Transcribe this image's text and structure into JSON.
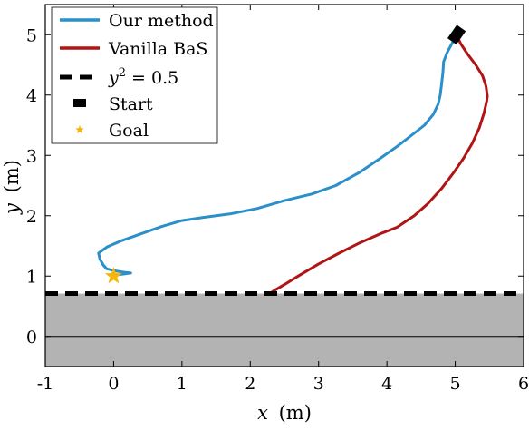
{
  "chart_data": {
    "type": "line",
    "xlabel_var": "x",
    "xlabel_unit": "(m)",
    "ylabel_var": "y",
    "ylabel_unit": "(m)",
    "xlim": [
      -1,
      6
    ],
    "ylim": [
      -0.5,
      5.5
    ],
    "grid": false,
    "legend_position": "top-left",
    "x_ticks": [
      -1,
      0,
      1,
      2,
      3,
      4,
      5,
      6
    ],
    "y_ticks": [
      0,
      1,
      2,
      3,
      4,
      5
    ],
    "x_tick_labels": [
      "-1",
      "0",
      "1",
      "2",
      "3",
      "4",
      "5",
      "6"
    ],
    "y_tick_labels": [
      "0",
      "1",
      "2",
      "3",
      "4",
      "5"
    ],
    "unsafe_region": {
      "y_max": 0.71,
      "color": "#b3b3b3"
    },
    "zero_line_y": 0,
    "series": [
      {
        "name": "Our method",
        "color": "#2b8fc9",
        "points": [
          [
            5.02,
            4.98
          ],
          [
            4.95,
            4.85
          ],
          [
            4.88,
            4.7
          ],
          [
            4.83,
            4.55
          ],
          [
            4.82,
            4.38
          ],
          [
            4.8,
            4.18
          ],
          [
            4.78,
            4.0
          ],
          [
            4.75,
            3.85
          ],
          [
            4.68,
            3.68
          ],
          [
            4.55,
            3.5
          ],
          [
            4.38,
            3.35
          ],
          [
            4.15,
            3.15
          ],
          [
            3.9,
            2.95
          ],
          [
            3.6,
            2.72
          ],
          [
            3.25,
            2.5
          ],
          [
            2.9,
            2.36
          ],
          [
            2.5,
            2.25
          ],
          [
            2.1,
            2.12
          ],
          [
            1.7,
            2.03
          ],
          [
            1.3,
            1.97
          ],
          [
            1.0,
            1.92
          ],
          [
            0.7,
            1.82
          ],
          [
            0.4,
            1.7
          ],
          [
            0.1,
            1.58
          ],
          [
            -0.1,
            1.48
          ],
          [
            -0.22,
            1.38
          ],
          [
            -0.2,
            1.28
          ],
          [
            -0.15,
            1.18
          ],
          [
            -0.1,
            1.12
          ],
          [
            0.05,
            1.08
          ],
          [
            0.18,
            1.06
          ],
          [
            0.25,
            1.05
          ],
          [
            0.18,
            1.04
          ],
          [
            0.05,
            1.02
          ],
          [
            0.0,
            1.0
          ]
        ]
      },
      {
        "name": "Vanilla BaS",
        "color": "#b01515",
        "points": [
          [
            5.02,
            5.0
          ],
          [
            5.08,
            4.85
          ],
          [
            5.18,
            4.68
          ],
          [
            5.3,
            4.5
          ],
          [
            5.4,
            4.32
          ],
          [
            5.45,
            4.15
          ],
          [
            5.47,
            3.98
          ],
          [
            5.46,
            3.9
          ],
          [
            5.42,
            3.7
          ],
          [
            5.35,
            3.45
          ],
          [
            5.25,
            3.2
          ],
          [
            5.12,
            2.95
          ],
          [
            4.98,
            2.72
          ],
          [
            4.8,
            2.45
          ],
          [
            4.6,
            2.2
          ],
          [
            4.4,
            2.0
          ],
          [
            4.15,
            1.81
          ],
          [
            3.9,
            1.7
          ],
          [
            3.6,
            1.55
          ],
          [
            3.3,
            1.38
          ],
          [
            3.0,
            1.2
          ],
          [
            2.7,
            1.0
          ],
          [
            2.5,
            0.86
          ],
          [
            2.35,
            0.76
          ],
          [
            2.3,
            0.72
          ]
        ]
      },
      {
        "name": "y² = 0.5",
        "color": "#000000",
        "style": "dashed",
        "y": 0.71
      }
    ],
    "markers": [
      {
        "name": "Start",
        "x": 5.02,
        "y": 5.0,
        "color": "#000000"
      },
      {
        "name": "Goal",
        "x": 0.0,
        "y": 1.0,
        "color": "#f5b60a"
      }
    ],
    "legend": [
      {
        "label": "Our method",
        "kind": "line",
        "color": "#2b8fc9"
      },
      {
        "label": "Vanilla BaS",
        "kind": "line",
        "color": "#b01515"
      },
      {
        "label_var": "y",
        "label_sup": "2",
        "label_rest": " = 0.5",
        "kind": "dashed",
        "color": "#000000"
      },
      {
        "label": "Start",
        "kind": "block",
        "color": "#000000"
      },
      {
        "label": "Goal",
        "kind": "star",
        "color": "#f5b60a"
      }
    ]
  }
}
